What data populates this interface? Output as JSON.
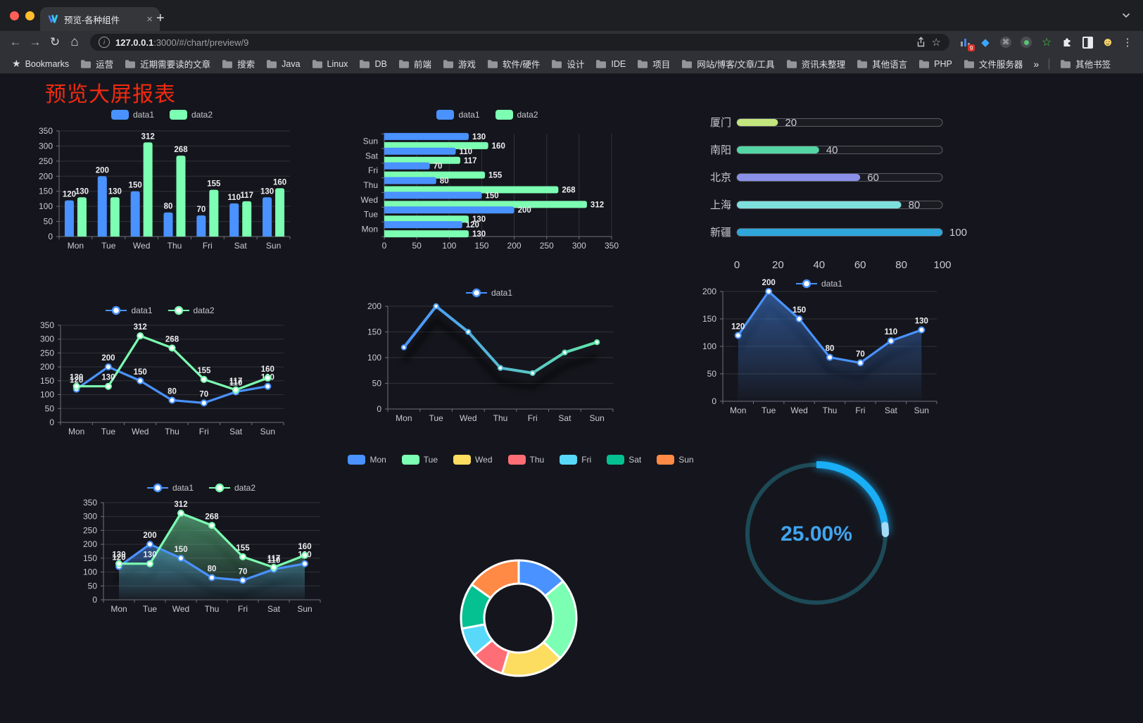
{
  "browser": {
    "tab": {
      "title": "预览-各种组件",
      "close_glyph": "×",
      "new_tab_glyph": "+"
    },
    "toolbar": {
      "back_glyph": "←",
      "forward_glyph": "→",
      "reload_glyph": "↻",
      "home_glyph": "⌂",
      "url_host": "127.0.0.1",
      "url_rest": ":3000/#/chart/preview/9",
      "star_glyph": "☆",
      "menu_glyph": "⋮",
      "extension_badge": "9",
      "extensions": [
        "stats-extension",
        "gem-extension",
        "command-extension",
        "recorder-extension",
        "star-extension",
        "puzzle-extension",
        "contrast-extension",
        "emoji-extension"
      ]
    },
    "bookmarks_bar": {
      "label": "Bookmarks",
      "star_glyph": "★",
      "items": [
        "运营",
        "近期需要读的文章",
        "搜索",
        "Java",
        "Linux",
        "DB",
        "前端",
        "游戏",
        "软件/硬件",
        "设计",
        "IDE",
        "项目",
        "网站/博客/文章/工具",
        "资讯未整理",
        "其他语言",
        "PHP",
        "文件服务器"
      ],
      "overflow_glyph": "»",
      "other_label": "其他书签"
    }
  },
  "page": {
    "title": "预览大屏报表",
    "title_color": "#f02a10"
  },
  "chart_data": [
    {
      "id": "bar-vertical",
      "type": "bar",
      "legend_marker": "rect",
      "categories": [
        "Mon",
        "Tue",
        "Wed",
        "Thu",
        "Fri",
        "Sat",
        "Sun"
      ],
      "series": [
        {
          "name": "data1",
          "color": "#4992ff",
          "values": [
            120,
            200,
            150,
            80,
            70,
            110,
            130
          ]
        },
        {
          "name": "data2",
          "color": "#7cffb2",
          "values": [
            130,
            130,
            312,
            268,
            155,
            117,
            160
          ]
        }
      ],
      "ylim": [
        0,
        350
      ],
      "ystep": 50,
      "grid": true,
      "legend_position": "top"
    },
    {
      "id": "bar-horizontal",
      "type": "hbar",
      "legend_marker": "rect",
      "categories": [
        "Mon",
        "Tue",
        "Wed",
        "Thu",
        "Fri",
        "Sat",
        "Sun"
      ],
      "series": [
        {
          "name": "data1",
          "color": "#4992ff",
          "values": [
            120,
            200,
            150,
            80,
            70,
            110,
            130
          ]
        },
        {
          "name": "data2",
          "color": "#7cffb2",
          "values": [
            130,
            130,
            312,
            268,
            155,
            117,
            160
          ]
        }
      ],
      "xlim": [
        0,
        350
      ],
      "xstep": 50,
      "grid": true,
      "legend_position": "top"
    },
    {
      "id": "progress",
      "type": "progress",
      "max": 100,
      "axis_ticks": [
        0,
        20,
        40,
        60,
        80,
        100
      ],
      "items": [
        {
          "label": "厦门",
          "value": 20,
          "color": "#c3e57e"
        },
        {
          "label": "南阳",
          "value": 40,
          "color": "#53d5a5"
        },
        {
          "label": "北京",
          "value": 60,
          "color": "#8a90e8"
        },
        {
          "label": "上海",
          "value": 80,
          "color": "#7ee0dd"
        },
        {
          "label": "新疆",
          "value": 100,
          "color": "#2ea6dc"
        }
      ]
    },
    {
      "id": "line-double",
      "type": "line",
      "legend_marker": "line",
      "show_labels": true,
      "area": false,
      "categories": [
        "Mon",
        "Tue",
        "Wed",
        "Thu",
        "Fri",
        "Sat",
        "Sun"
      ],
      "series": [
        {
          "name": "data1",
          "color": "#4992ff",
          "values": [
            120,
            200,
            150,
            80,
            70,
            110,
            130
          ]
        },
        {
          "name": "data2",
          "color": "#7cffb2",
          "values": [
            130,
            130,
            312,
            268,
            155,
            117,
            160
          ]
        }
      ],
      "ylim": [
        0,
        350
      ],
      "ystep": 50,
      "legend_position": "top"
    },
    {
      "id": "line-gradient",
      "type": "line-gradient",
      "legend_marker": "line",
      "show_labels": false,
      "categories": [
        "Mon",
        "Tue",
        "Wed",
        "Thu",
        "Fri",
        "Sat",
        "Sun"
      ],
      "series": [
        {
          "name": "data1",
          "color": "#4992ff",
          "values": [
            120,
            200,
            150,
            80,
            70,
            110,
            130
          ]
        }
      ],
      "gradient": [
        "#4992ff",
        "#62e5a8"
      ],
      "shadow": true,
      "ylim": [
        0,
        200
      ],
      "ystep": 50,
      "legend_position": "top"
    },
    {
      "id": "line-area",
      "type": "line",
      "legend_marker": "line",
      "show_labels": true,
      "area": true,
      "shadow": true,
      "categories": [
        "Mon",
        "Tue",
        "Wed",
        "Thu",
        "Fri",
        "Sat",
        "Sun"
      ],
      "series": [
        {
          "name": "data1",
          "color": "#4992ff",
          "values": [
            120,
            200,
            150,
            80,
            70,
            110,
            130
          ]
        }
      ],
      "ylim": [
        0,
        200
      ],
      "ystep": 50,
      "legend_position": "top"
    },
    {
      "id": "line-double-area",
      "type": "line",
      "legend_marker": "line",
      "show_labels": true,
      "area": true,
      "shadow": true,
      "categories": [
        "Mon",
        "Tue",
        "Wed",
        "Thu",
        "Fri",
        "Sat",
        "Sun"
      ],
      "series": [
        {
          "name": "data1",
          "color": "#4992ff",
          "values": [
            120,
            200,
            150,
            80,
            70,
            110,
            130
          ]
        },
        {
          "name": "data2",
          "color": "#7cffb2",
          "values": [
            130,
            130,
            312,
            268,
            155,
            117,
            160
          ]
        }
      ],
      "ylim": [
        0,
        350
      ],
      "ystep": 50,
      "legend_position": "top"
    },
    {
      "id": "donut",
      "type": "pie",
      "legend_marker": "rect",
      "inner_radius": 49,
      "outer_radius": 82,
      "items": [
        {
          "label": "Mon",
          "value": 120,
          "color": "#4992ff"
        },
        {
          "label": "Tue",
          "value": 200,
          "color": "#7cffb2"
        },
        {
          "label": "Wed",
          "value": 150,
          "color": "#fddd60"
        },
        {
          "label": "Thu",
          "value": 80,
          "color": "#ff6e76"
        },
        {
          "label": "Fri",
          "value": 70,
          "color": "#58d9f9"
        },
        {
          "label": "Sat",
          "value": 110,
          "color": "#05c091"
        },
        {
          "label": "Sun",
          "value": 130,
          "color": "#ff8a45"
        }
      ],
      "legend_position": "top",
      "border_color": "#ffffff"
    },
    {
      "id": "gauge",
      "type": "gauge",
      "value": 25,
      "display": "25.00%",
      "arc_color": "#19aef6",
      "track_color": "#1d4a57",
      "text_color": "#41a5f0"
    }
  ]
}
